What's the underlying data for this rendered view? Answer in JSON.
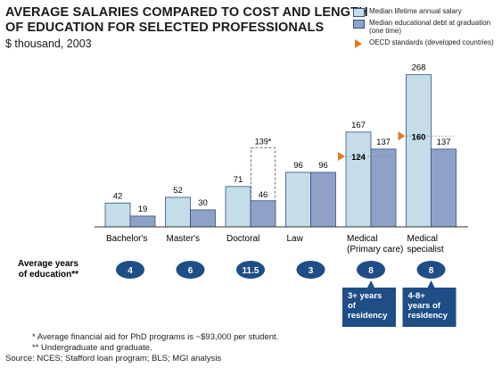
{
  "title_line1": "AVERAGE SALARIES COMPARED TO COST AND LENGTH",
  "title_line2": "OF EDUCATION FOR SELECTED PROFESSIONALS",
  "subtitle": "$ thousand, 2003",
  "legend": {
    "salary": "Median lifetime annual salary",
    "debt": "Median educational debt at graduation (one time)",
    "oecd": "OECD standards (developed countries)"
  },
  "colors": {
    "salary": "#c5dde9",
    "debt": "#8ea2c8",
    "oecd": "#e07c28",
    "badge": "#1f4e86"
  },
  "chart_data": {
    "type": "bar",
    "categories": [
      "Bachelor's",
      "Master's",
      "Doctoral",
      "Law",
      "Medical (Primary care)",
      "Medical specialist"
    ],
    "category_lines": [
      [
        "Bachelor's"
      ],
      [
        "Master's"
      ],
      [
        "Doctoral"
      ],
      [
        "Law"
      ],
      [
        "Medical",
        "(Primary care)"
      ],
      [
        "Medical",
        "specialist"
      ]
    ],
    "series": [
      {
        "name": "Median lifetime annual salary",
        "values": [
          42,
          52,
          71,
          96,
          167,
          268
        ]
      },
      {
        "name": "Median educational debt at graduation (one time)",
        "values": [
          19,
          30,
          46,
          96,
          137,
          137
        ]
      }
    ],
    "oecd_standards": [
      null,
      null,
      null,
      null,
      124,
      160
    ],
    "aid_adjusted_debt": [
      null,
      null,
      139,
      null,
      null,
      null
    ],
    "aid_adjusted_label": "139*",
    "ylim": [
      0,
      280
    ],
    "avg_years_label_line1": "Average years",
    "avg_years_label_line2": "of education**",
    "avg_years": [
      "4",
      "6",
      "11.5",
      "3",
      "8",
      "8"
    ],
    "callouts": [
      {
        "category": "Medical (Primary care)",
        "lines": [
          "3+ years",
          "of",
          "residency"
        ]
      },
      {
        "category": "Medical specialist",
        "lines": [
          "4-8+",
          "years of",
          "residency"
        ]
      }
    ]
  },
  "notes": {
    "line1": "* Average financial aid for PhD programs is ~$93,000 per student.",
    "line2": "** Undergraduate and graduate.",
    "source": "Source: NCES; Stafford loan program; BLS; MGI analysis"
  }
}
